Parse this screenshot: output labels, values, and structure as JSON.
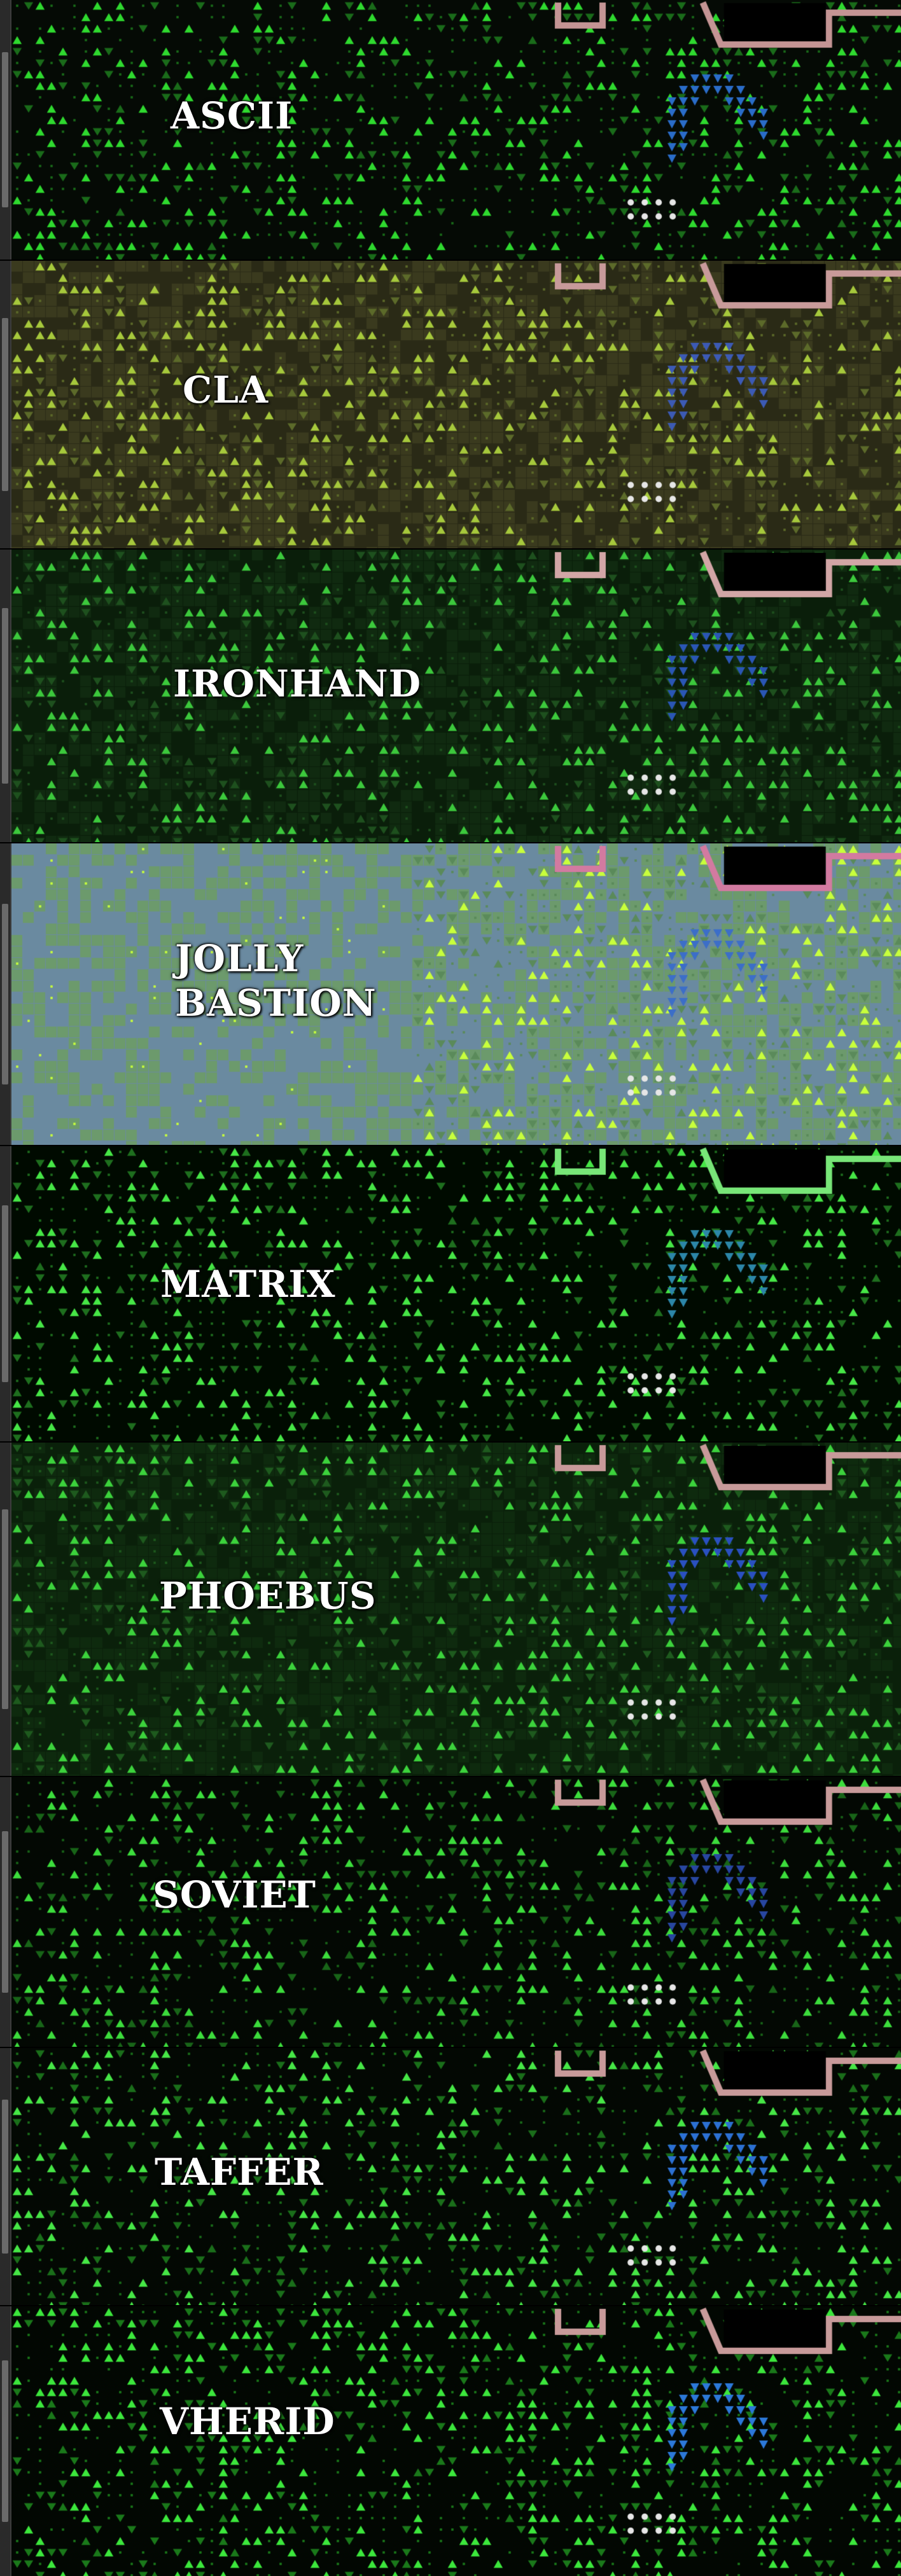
{
  "panels": [
    {
      "id": "ascii",
      "lines": [
        "ASCII"
      ],
      "palette": {
        "bg": "#050a05",
        "tree": "#2fd92f",
        "dim": "#1a6b1a",
        "water": "#2a6cc8",
        "wall": "#c49494",
        "floor": "#0c160c"
      }
    },
    {
      "id": "cla",
      "lines": [
        "CLA"
      ],
      "palette": {
        "bg": "#2a2a16",
        "tree": "#a6c83c",
        "dim": "#5c6a2a",
        "water": "#3c5ab4",
        "wall": "#c89a9a",
        "floor": "#3a3a1e"
      }
    },
    {
      "id": "ironhand",
      "lines": [
        "IRONHAND"
      ],
      "palette": {
        "bg": "#0a1e0a",
        "tree": "#3cc83c",
        "dim": "#1e501e",
        "water": "#2a56b4",
        "wall": "#d2a6a6",
        "floor": "#102a10"
      }
    },
    {
      "id": "jolly-bastion",
      "lines": [
        "JOLLY",
        "BASTION"
      ],
      "palette": {
        "bg": "#6a8aa0",
        "tree": "#c8ff3c",
        "dim": "#5a8a5a",
        "water": "#3c6ec8",
        "wall": "#d27aa0",
        "floor": "#6c9a6c"
      }
    },
    {
      "id": "matrix",
      "lines": [
        "MATRIX"
      ],
      "palette": {
        "bg": "#000a00",
        "tree": "#46e646",
        "dim": "#1e6e1e",
        "water": "#2c86a8",
        "wall": "#78e678",
        "floor": "#061006"
      }
    },
    {
      "id": "phoebus",
      "lines": [
        "PHOEBUS"
      ],
      "palette": {
        "bg": "#0a200a",
        "tree": "#3cd23c",
        "dim": "#1e5a1e",
        "water": "#2a50c0",
        "wall": "#c89a9a",
        "floor": "#0e2a0e"
      }
    },
    {
      "id": "soviet",
      "lines": [
        "SOVIET"
      ],
      "palette": {
        "bg": "#030803",
        "tree": "#3cdc3c",
        "dim": "#186418",
        "water": "#2846a0",
        "wall": "#c89a9a",
        "floor": "#081008"
      }
    },
    {
      "id": "taffer",
      "lines": [
        "TAFFER"
      ],
      "palette": {
        "bg": "#030803",
        "tree": "#46e646",
        "dim": "#1a6e1a",
        "water": "#2c70d2",
        "wall": "#c89a9a",
        "floor": "#081008"
      }
    },
    {
      "id": "vherid",
      "lines": [
        "VHERID"
      ],
      "palette": {
        "bg": "#020702",
        "tree": "#3ce63c",
        "dim": "#1a781a",
        "water": "#2c78d8",
        "wall": "#c89a9a",
        "floor": "#081008"
      }
    }
  ]
}
